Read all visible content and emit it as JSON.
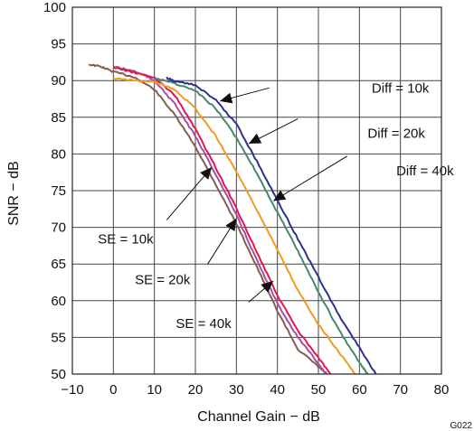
{
  "chart_data": {
    "type": "line",
    "xlabel": "Channel Gain − dB",
    "ylabel": "SNR − dB",
    "figure_id": "G022",
    "xlim": [
      -10,
      80
    ],
    "ylim": [
      50,
      100
    ],
    "x_ticks": [
      "−10",
      "0",
      "10",
      "20",
      "30",
      "40",
      "50",
      "60",
      "70",
      "80"
    ],
    "y_ticks": [
      "50",
      "55",
      "60",
      "65",
      "70",
      "75",
      "80",
      "85",
      "90",
      "95",
      "100"
    ],
    "grid": true,
    "series": [
      {
        "color": "#7f5f4d",
        "x": [
          -6,
          -3,
          0,
          5,
          10,
          15,
          20,
          25,
          30,
          35,
          40,
          45,
          50,
          52
        ],
        "y": [
          92.2,
          91.9,
          91.2,
          90.5,
          88.8,
          85.3,
          81.0,
          75.8,
          70.5,
          64.6,
          58.6,
          53.4,
          51.0,
          50.0
        ]
      },
      {
        "color": "#a24fa8",
        "x": [
          0,
          5,
          8,
          10,
          15,
          20,
          25,
          30,
          35,
          40,
          45,
          50,
          52
        ],
        "y": [
          91.9,
          91.3,
          90.6,
          90.0,
          86.8,
          82.4,
          77.2,
          71.7,
          65.5,
          59.6,
          55.0,
          51.4,
          50.0
        ]
      },
      {
        "color": "#e2174b",
        "x": [
          0,
          5,
          10,
          15,
          20,
          25,
          30,
          35,
          40,
          45,
          50,
          53
        ],
        "y": [
          91.8,
          91.1,
          90.4,
          88.0,
          83.4,
          78.1,
          72.6,
          66.6,
          60.7,
          55.9,
          52.2,
          50.0
        ]
      },
      {
        "color": "#f39a1e",
        "x": [
          0,
          5,
          10,
          15,
          20,
          25,
          30,
          35,
          40,
          45,
          50,
          55,
          59
        ],
        "y": [
          90.3,
          90.0,
          89.8,
          88.8,
          86.2,
          82.4,
          77.6,
          72.4,
          66.9,
          61.4,
          56.8,
          53.0,
          50.0
        ]
      },
      {
        "color": "#4a8570",
        "x": [
          10,
          15,
          20,
          25,
          30,
          35,
          40,
          45,
          50,
          55,
          60,
          62
        ],
        "y": [
          90.4,
          89.6,
          88.6,
          86.2,
          82.2,
          77.4,
          72.0,
          66.8,
          61.2,
          56.0,
          51.6,
          50.0
        ]
      },
      {
        "color": "#2b338f",
        "x": [
          13,
          15,
          20,
          25,
          30,
          35,
          40,
          45,
          50,
          55,
          60,
          64
        ],
        "y": [
          90.4,
          89.9,
          89.4,
          87.3,
          84.1,
          79.0,
          73.7,
          68.4,
          63.2,
          58.0,
          53.6,
          50.0
        ]
      }
    ],
    "annotations": [
      {
        "text": "Diff = 10k",
        "label_at": [
          70,
          89.0
        ],
        "pointer_from": [
          38,
          89.0
        ],
        "arrow_at": [
          26,
          87.2
        ]
      },
      {
        "text": "Diff = 20k",
        "label_at": [
          69,
          82.8
        ],
        "pointer_from": [
          45,
          84.8
        ],
        "arrow_at": [
          33,
          81.4
        ]
      },
      {
        "text": "Diff = 40k",
        "label_at": [
          76,
          77.7
        ],
        "pointer_from": [
          57,
          79.7
        ],
        "arrow_at": [
          39,
          73.6
        ]
      },
      {
        "text": "SE = 10k",
        "label_at": [
          3,
          68.4
        ],
        "pointer_from": [
          13,
          71.0
        ],
        "arrow_at": [
          24,
          78.2
        ]
      },
      {
        "text": "SE = 20k",
        "label_at": [
          12,
          62.9
        ],
        "pointer_from": [
          23,
          65.0
        ],
        "arrow_at": [
          30,
          71.2
        ]
      },
      {
        "text": "SE = 40k",
        "label_at": [
          22,
          56.9
        ],
        "pointer_from": [
          33,
          59.8
        ],
        "arrow_at": [
          39,
          62.7
        ]
      }
    ]
  }
}
